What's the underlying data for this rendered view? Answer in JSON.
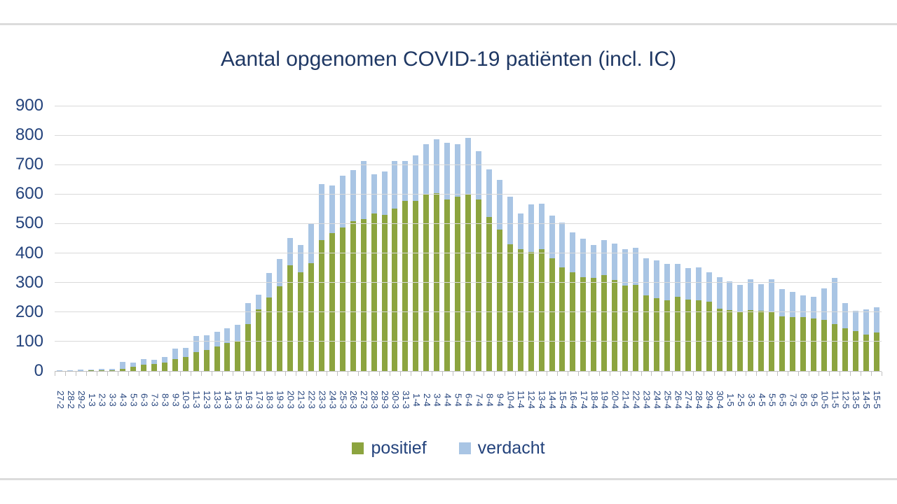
{
  "page": {
    "background": "#ffffff",
    "top_rule_color": "#dcdcdc",
    "bottom_rule_color": "#dcdcdc"
  },
  "colors": {
    "title_text": "#1f3864",
    "axis_text": "#24437c",
    "gridline": "#d9d9d9",
    "axis_line": "#bfbfbf"
  },
  "chart_data": {
    "type": "bar",
    "stacked": true,
    "title": "Aantal opgenomen COVID-19 patiënten (incl. IC)",
    "xlabel": "",
    "ylabel": "",
    "ylim": [
      0,
      900
    ],
    "ytick_step": 100,
    "yticks": [
      0,
      100,
      200,
      300,
      400,
      500,
      600,
      700,
      800,
      900
    ],
    "grid": true,
    "legend_position": "bottom",
    "categories": [
      "27-2",
      "28-2",
      "29-2",
      "1-3",
      "2-3",
      "3-3",
      "4-3",
      "5-3",
      "6-3",
      "7-3",
      "8-3",
      "9-3",
      "10-3",
      "11-3",
      "12-3",
      "13-3",
      "14-3",
      "15-3",
      "16-3",
      "17-3",
      "18-3",
      "19-3",
      "20-3",
      "21-3",
      "22-3",
      "23-3",
      "24-3",
      "25-3",
      "26-3",
      "27-3",
      "28-3",
      "29-3",
      "30-3",
      "31-3",
      "1-4",
      "2-4",
      "3-4",
      "4-4",
      "5-4",
      "6-4",
      "7-4",
      "8-4",
      "9-4",
      "10-4",
      "11-4",
      "12-4",
      "13-4",
      "14-4",
      "15-4",
      "16-4",
      "17-4",
      "18-4",
      "19-4",
      "20-4",
      "21-4",
      "22-4",
      "23-4",
      "24-4",
      "25-4",
      "26-4",
      "27-4",
      "28-4",
      "29-4",
      "30-4",
      "1-5",
      "2-5",
      "3-5",
      "4-5",
      "5-5",
      "6-5",
      "7-5",
      "8-5",
      "9-5",
      "10-5",
      "11-5",
      "12-5",
      "13-5",
      "14-5",
      "15-5"
    ],
    "series": [
      {
        "name": "positief",
        "color": "#8ca43f",
        "values": [
          0,
          1,
          1,
          2,
          3,
          3,
          6,
          15,
          22,
          24,
          28,
          40,
          48,
          63,
          71,
          83,
          95,
          100,
          160,
          210,
          250,
          287,
          358,
          334,
          366,
          443,
          467,
          487,
          509,
          516,
          534,
          530,
          550,
          578,
          578,
          602,
          604,
          582,
          591,
          600,
          583,
          522,
          479,
          431,
          413,
          404,
          413,
          382,
          352,
          334,
          318,
          315,
          326,
          309,
          289,
          291,
          257,
          247,
          239,
          251,
          243,
          241,
          234,
          212,
          207,
          203,
          206,
          204,
          199,
          186,
          184,
          182,
          178,
          174,
          160,
          146,
          136,
          123,
          130
        ]
      },
      {
        "name": "verdacht",
        "color": "#a9c5e4",
        "values": [
          2,
          2,
          3,
          4,
          4,
          5,
          25,
          14,
          18,
          14,
          20,
          35,
          31,
          56,
          49,
          50,
          51,
          56,
          70,
          50,
          82,
          93,
          93,
          93,
          133,
          190,
          162,
          175,
          173,
          197,
          133,
          147,
          163,
          134,
          154,
          168,
          181,
          192,
          179,
          190,
          163,
          163,
          170,
          161,
          121,
          161,
          154,
          146,
          151,
          137,
          131,
          113,
          117,
          123,
          124,
          127,
          125,
          128,
          125,
          112,
          105,
          110,
          102,
          107,
          96,
          90,
          105,
          91,
          111,
          91,
          84,
          74,
          74,
          106,
          155,
          84,
          68,
          87,
          85
        ]
      }
    ]
  }
}
